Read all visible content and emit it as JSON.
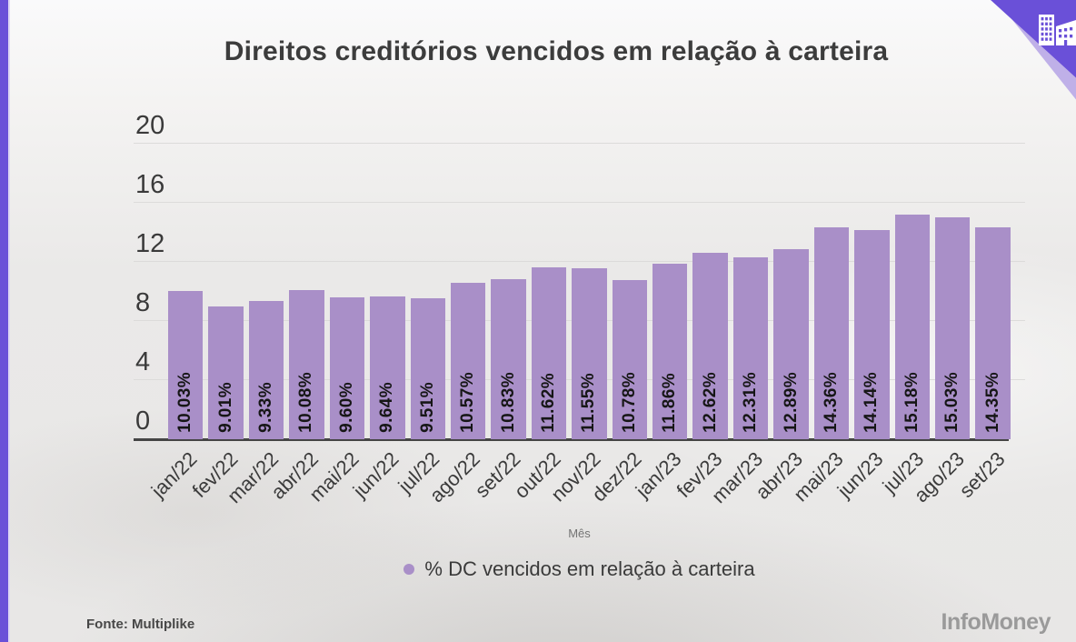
{
  "page": {
    "source": "Fonte: Multiplike",
    "brand": "InfoMoney"
  },
  "chart_data": {
    "type": "bar",
    "title": "Direitos creditórios vencidos em relação à carteira",
    "xlabel": "Mês",
    "ylabel": "",
    "ylim": [
      0,
      20
    ],
    "yticks": [
      20,
      16,
      12,
      8,
      4,
      0
    ],
    "grid": true,
    "categories": [
      "jan/22",
      "fev/22",
      "mar/22",
      "abr/22",
      "mai/22",
      "jun/22",
      "jul/22",
      "ago/22",
      "set/22",
      "out/22",
      "nov/22",
      "dez/22",
      "jan/23",
      "fev/23",
      "mar/23",
      "abr/23",
      "mai/23",
      "jun/23",
      "jul/23",
      "ago/23",
      "set/23"
    ],
    "values": [
      10.03,
      9.01,
      9.33,
      10.08,
      9.6,
      9.64,
      9.51,
      10.57,
      10.83,
      11.62,
      11.55,
      10.78,
      11.86,
      12.62,
      12.31,
      12.89,
      14.36,
      14.14,
      15.18,
      15.03,
      14.35
    ],
    "bar_labels": [
      "10.03%",
      "9.01%",
      "9.33%",
      "10.08%",
      "9.60%",
      "9.64%",
      "9.51%",
      "10.57%",
      "10.83%",
      "11.62%",
      "11.55%",
      "10.78%",
      "11.86%",
      "12.62%",
      "12.31%",
      "12.89%",
      "14.36%",
      "14.14%",
      "15.18%",
      "15.03%",
      "14.35%"
    ],
    "legend": [
      "% DC vencidos em relação à carteira"
    ],
    "legend_position": "bottom",
    "bar_color": "#A98FC8"
  },
  "colors": {
    "accent_purple": "#6A50D8",
    "accent_purple_light": "#BFB0E8",
    "bar": "#A98FC8",
    "grid_line": "#DCDBDA",
    "axis_line": "#454545",
    "title_text": "#3C3C3C",
    "value_text": "#161616",
    "brand_gray": "#9A9A9A"
  },
  "icons": {
    "corner": "buildings-icon"
  }
}
